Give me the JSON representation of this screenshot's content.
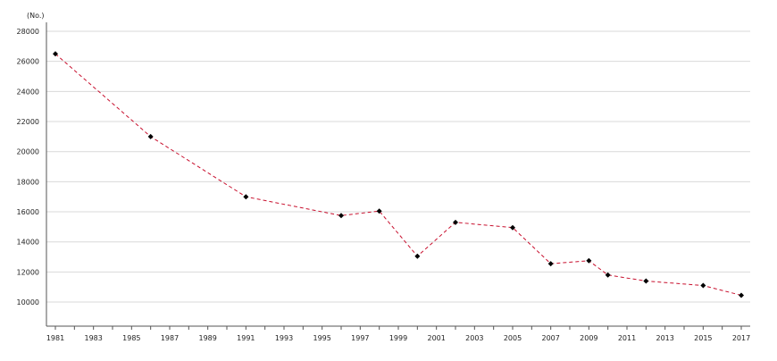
{
  "chart_data": {
    "type": "line",
    "title": "",
    "xlabel": "",
    "ylabel": "(No.)",
    "ylim": [
      8400,
      28000
    ],
    "xlim": [
      1981,
      2017
    ],
    "grid": "horizontal",
    "x_ticks": [
      1981,
      1983,
      1985,
      1987,
      1989,
      1991,
      1993,
      1995,
      1997,
      1999,
      2001,
      2003,
      2005,
      2007,
      2009,
      2011,
      2013,
      2015,
      2017
    ],
    "y_ticks": [
      10000,
      12000,
      14000,
      16000,
      18000,
      20000,
      22000,
      24000,
      26000,
      28000
    ],
    "series": [
      {
        "x": [
          1981,
          1986,
          1991,
          1996,
          1998,
          2000,
          2002,
          2005,
          2007,
          2009,
          2010,
          2012,
          2015,
          2017
        ],
        "values": [
          26500,
          21000,
          17000,
          15750,
          16050,
          13050,
          15300,
          14950,
          12550,
          12750,
          11800,
          11400,
          11100,
          10450
        ],
        "color": "#c8102e",
        "marker_color": "#000000",
        "line_style": "dashed"
      }
    ]
  }
}
